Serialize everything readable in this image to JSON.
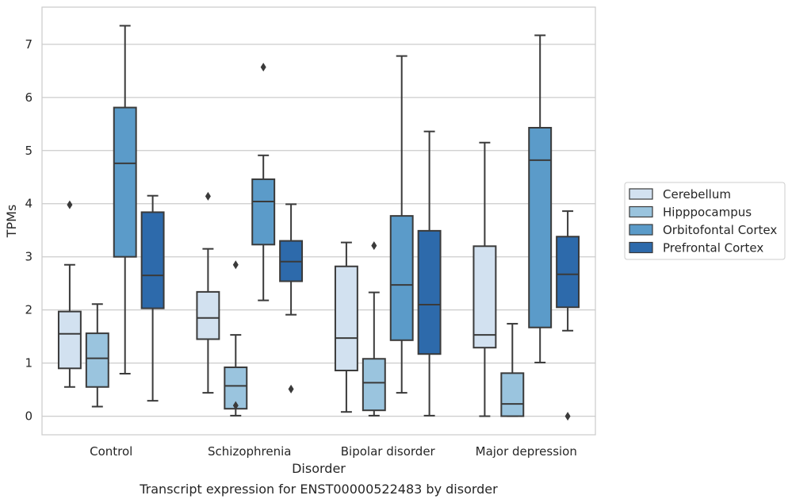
{
  "chart_data": {
    "type": "box",
    "title": "",
    "caption": "Transcript expression for ENST00000522483 by disorder",
    "xlabel": "Disorder",
    "ylabel": "TPMs",
    "ylim": [
      -0.35,
      7.7
    ],
    "yticks": [
      0,
      1,
      2,
      3,
      4,
      5,
      6,
      7
    ],
    "grid": true,
    "legend_position": "right",
    "categories": [
      "Control",
      "Schizophrenia",
      "Bipolar disorder",
      "Major depression"
    ],
    "series": [
      {
        "name": "Cerebellum",
        "color": "#d2e1f0",
        "boxes": [
          {
            "whislo": 0.55,
            "q1": 0.9,
            "med": 1.55,
            "q3": 1.97,
            "whishi": 2.85,
            "fliers": [
              3.98
            ]
          },
          {
            "whislo": 0.44,
            "q1": 1.45,
            "med": 1.85,
            "q3": 2.34,
            "whishi": 3.15,
            "fliers": [
              4.14
            ]
          },
          {
            "whislo": 0.08,
            "q1": 0.86,
            "med": 1.47,
            "q3": 2.82,
            "whishi": 3.27,
            "fliers": []
          },
          {
            "whislo": 0.0,
            "q1": 1.29,
            "med": 1.53,
            "q3": 3.2,
            "whishi": 5.15,
            "fliers": []
          }
        ]
      },
      {
        "name": "Hipppocampus",
        "color": "#9ac4de",
        "boxes": [
          {
            "whislo": 0.18,
            "q1": 0.55,
            "med": 1.09,
            "q3": 1.56,
            "whishi": 2.11,
            "fliers": []
          },
          {
            "whislo": 0.01,
            "q1": 0.14,
            "med": 0.57,
            "q3": 0.92,
            "whishi": 1.53,
            "fliers": [
              2.85,
              0.2
            ]
          },
          {
            "whislo": 0.01,
            "q1": 0.11,
            "med": 0.63,
            "q3": 1.08,
            "whishi": 2.33,
            "fliers": [
              3.21
            ]
          },
          {
            "whislo": 0.0,
            "q1": 0.0,
            "med": 0.23,
            "q3": 0.81,
            "whishi": 1.74,
            "fliers": []
          }
        ]
      },
      {
        "name": "Orbitofontal Cortex",
        "color": "#5b9bc9",
        "boxes": [
          {
            "whislo": 0.8,
            "q1": 3.0,
            "med": 4.76,
            "q3": 5.81,
            "whishi": 7.35,
            "fliers": []
          },
          {
            "whislo": 2.18,
            "q1": 3.23,
            "med": 4.04,
            "q3": 4.46,
            "whishi": 4.91,
            "fliers": [
              6.57
            ]
          },
          {
            "whislo": 0.44,
            "q1": 1.43,
            "med": 2.47,
            "q3": 3.77,
            "whishi": 6.78,
            "fliers": []
          },
          {
            "whislo": 1.01,
            "q1": 1.67,
            "med": 4.82,
            "q3": 5.43,
            "whishi": 7.17,
            "fliers": []
          }
        ]
      },
      {
        "name": "Prefrontal Cortex",
        "color": "#2d6aab",
        "boxes": [
          {
            "whislo": 0.29,
            "q1": 2.03,
            "med": 2.65,
            "q3": 3.84,
            "whishi": 4.15,
            "fliers": []
          },
          {
            "whislo": 1.91,
            "q1": 2.54,
            "med": 2.91,
            "q3": 3.3,
            "whishi": 3.99,
            "fliers": [
              0.51
            ]
          },
          {
            "whislo": 0.01,
            "q1": 1.17,
            "med": 2.1,
            "q3": 3.49,
            "whishi": 5.36,
            "fliers": []
          },
          {
            "whislo": 1.61,
            "q1": 2.05,
            "med": 2.67,
            "q3": 3.38,
            "whishi": 3.86,
            "fliers": [
              0.0
            ]
          }
        ]
      }
    ]
  }
}
